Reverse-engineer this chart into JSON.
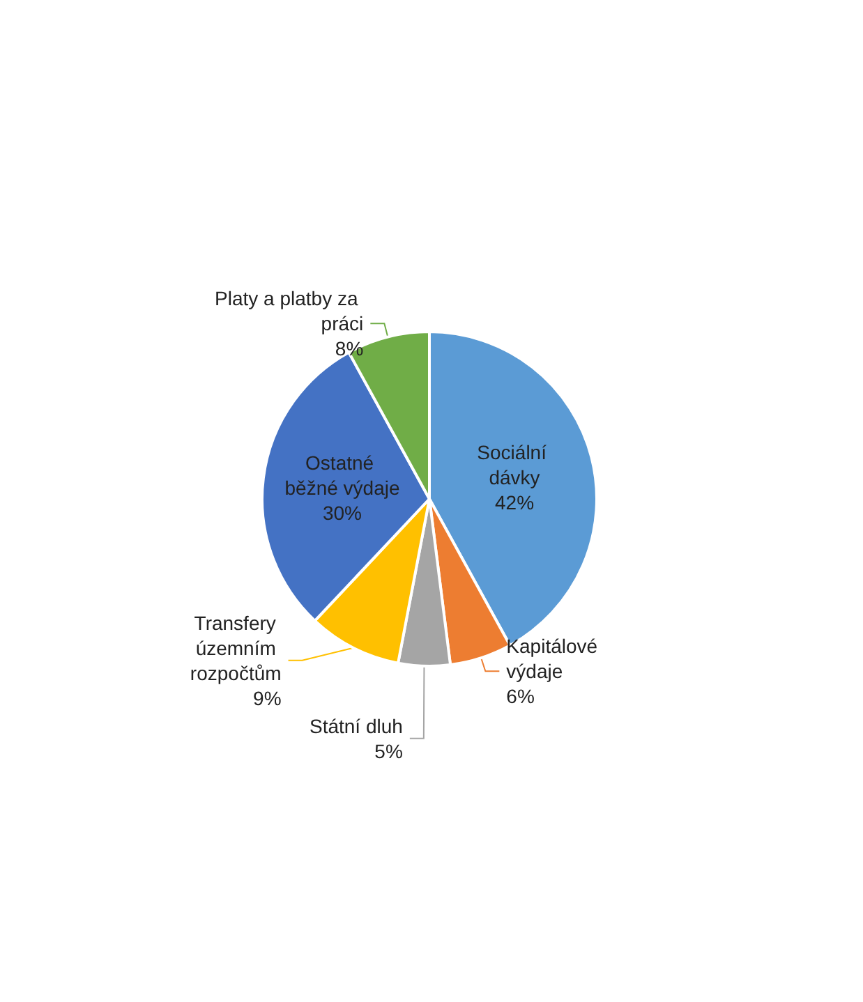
{
  "chart_data": {
    "type": "pie",
    "categories": [
      "Sociální dávky",
      "Kapitálové výdaje",
      "Státní dluh",
      "Transfery územním rozpočtům",
      "Ostatné běžné výdaje",
      "Platy a platby za práci"
    ],
    "values": [
      42,
      6,
      5,
      9,
      30,
      8
    ],
    "colors": [
      "#5b9bd5",
      "#ed7d31",
      "#a5a5a5",
      "#ffc000",
      "#4472c4",
      "#70ad47"
    ],
    "value_labels": [
      "42%",
      "6%",
      "5%",
      "9%",
      "30%",
      "8%"
    ],
    "legend": false
  }
}
